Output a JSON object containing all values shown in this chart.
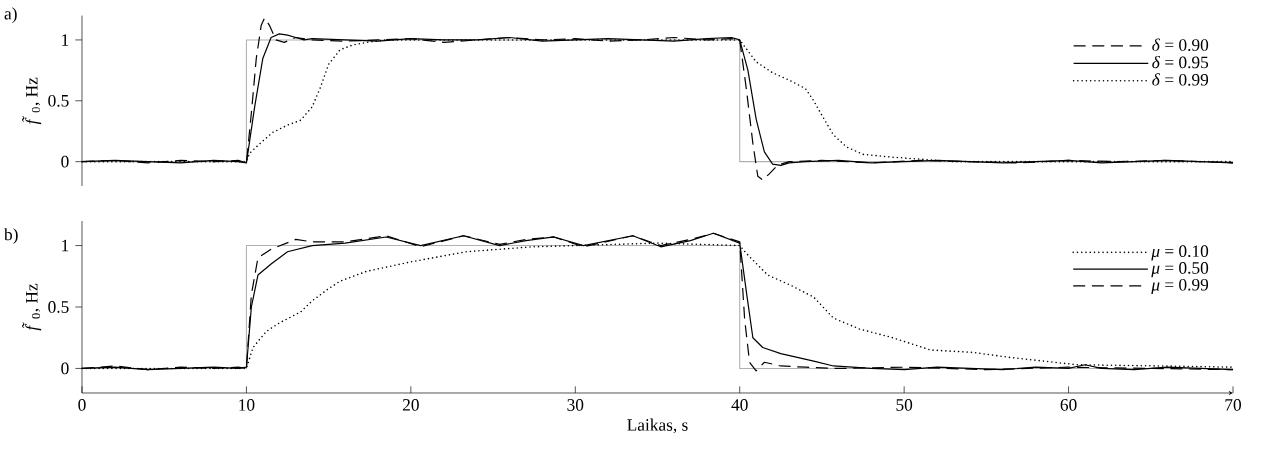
{
  "chart_data": [
    {
      "type": "line",
      "ylabel": "*f̃*$_{0}$, Hz",
      "annotations": [
        "a)"
      ],
      "xlim": [
        0,
        70
      ],
      "ylim": [
        -0.2,
        1.2
      ],
      "yticks": [
        0,
        0.5,
        1
      ],
      "tick_labels": "y",
      "legend": "right",
      "series": [
        {
          "color": "#b0b0b0",
          "line_style": "solid",
          "x": [
            0,
            10,
            10,
            40,
            40,
            70
          ],
          "values": [
            0,
            0,
            1,
            1,
            0,
            0
          ]
        },
        {
          "name": "*δ* = 0.90",
          "color": "#000000",
          "line_style": "dashed",
          "x": [
            0,
            2,
            4,
            6,
            8,
            9.5,
            10,
            10.3,
            10.6,
            10.9,
            11.1,
            11.4,
            11.8,
            12.3,
            13,
            14,
            16,
            18,
            20,
            22,
            24,
            26,
            28,
            30,
            32,
            34,
            36,
            38,
            39.5,
            40,
            40.4,
            40.8,
            41.1,
            41.4,
            41.8,
            42.3,
            43,
            45,
            48,
            51,
            54,
            57,
            60,
            63,
            66,
            70
          ],
          "values": [
            0,
            0.01,
            -0.01,
            0.01,
            0,
            0.01,
            -0.01,
            0.4,
            0.85,
            1.12,
            1.18,
            1.12,
            1.0,
            0.98,
            1.02,
            1.0,
            0.99,
            1.0,
            1.01,
            0.98,
            1.0,
            1.02,
            1.0,
            1.01,
            0.99,
            1.0,
            1.02,
            1.0,
            1.01,
            1.0,
            0.6,
            0.15,
            -0.12,
            -0.15,
            -0.1,
            -0.03,
            0,
            0.01,
            -0.01,
            0.01,
            0,
            -0.01,
            0.01,
            0,
            0.01,
            -0.01
          ]
        },
        {
          "name": "*δ* = 0.95",
          "color": "#000000",
          "line_style": "solid",
          "x": [
            0,
            2,
            4,
            6,
            8,
            9.5,
            10,
            10.5,
            11,
            11.5,
            12,
            12.5,
            13,
            13.5,
            14,
            16,
            18,
            20,
            22,
            24,
            26,
            28,
            30,
            32,
            34,
            36,
            38,
            39.5,
            40,
            40.5,
            41,
            41.5,
            42,
            42.5,
            43,
            44,
            46,
            48,
            50,
            52,
            54,
            56,
            58,
            60,
            62,
            64,
            66,
            68,
            70
          ],
          "values": [
            0,
            0.01,
            0,
            -0.01,
            0.01,
            0,
            -0.01,
            0.45,
            0.85,
            1.02,
            1.05,
            1.04,
            1.02,
            1.0,
            1.01,
            1.0,
            0.99,
            1.01,
            1.0,
            1.0,
            1.02,
            0.99,
            1.0,
            1.01,
            1.0,
            0.99,
            1.01,
            1.02,
            1.0,
            0.75,
            0.35,
            0.08,
            -0.02,
            -0.03,
            -0.01,
            0,
            0.01,
            -0.01,
            0,
            0.01,
            0,
            -0.01,
            0,
            0.01,
            -0.01,
            0,
            0.01,
            0,
            -0.01
          ]
        },
        {
          "name": "*δ* = 0.99",
          "color": "#000000",
          "line_style": "dotted",
          "x": [
            0,
            4,
            8,
            10,
            10.2,
            11,
            11.6,
            12.5,
            13.3,
            14,
            14.5,
            15,
            15.7,
            16.5,
            17.3,
            18.5,
            20,
            25,
            30,
            35,
            40,
            41,
            42,
            43,
            44,
            44.5,
            45,
            45.7,
            46.5,
            47.5,
            49,
            51,
            53,
            56,
            60,
            65,
            70
          ],
          "values": [
            0,
            0,
            0,
            0,
            0.07,
            0.17,
            0.24,
            0.3,
            0.34,
            0.45,
            0.61,
            0.8,
            0.92,
            0.96,
            0.98,
            1.0,
            1.0,
            1.0,
            1.0,
            1.0,
            1.0,
            0.82,
            0.73,
            0.67,
            0.6,
            0.5,
            0.38,
            0.22,
            0.12,
            0.06,
            0.04,
            0.02,
            0,
            0,
            0,
            0,
            0
          ]
        }
      ]
    },
    {
      "type": "line",
      "ylabel": "*f̃*$_{0}$, Hz",
      "xlabel": "Laikas, s",
      "annotations": [
        "b)"
      ],
      "xlim": [
        0,
        70
      ],
      "ylim": [
        -0.2,
        1.2
      ],
      "xticks": [
        0,
        10,
        20,
        30,
        40,
        50,
        60,
        70
      ],
      "yticks": [
        0,
        0.5,
        1
      ],
      "legend": "right",
      "series": [
        {
          "color": "#b0b0b0",
          "line_style": "solid",
          "x": [
            0,
            10,
            10,
            40,
            40,
            70
          ],
          "values": [
            0,
            0,
            1,
            1,
            0,
            0
          ]
        },
        {
          "name": "*μ* = 0.10",
          "color": "#000000",
          "line_style": "dotted",
          "x": [
            0,
            4,
            8,
            10,
            10.4,
            11.2,
            12,
            13.3,
            14,
            15,
            15.7,
            17.3,
            20.1,
            23.4,
            27.4,
            30,
            35,
            40,
            40.45,
            41.7,
            43.2,
            44.5,
            45.7,
            47.3,
            49.3,
            51.6,
            54.2,
            56.4,
            60.5,
            65.6,
            70
          ],
          "values": [
            0,
            0,
            0,
            0,
            0.17,
            0.3,
            0.37,
            0.46,
            0.55,
            0.65,
            0.71,
            0.79,
            0.87,
            0.95,
            0.99,
            1.0,
            1.02,
            1.0,
            0.93,
            0.76,
            0.67,
            0.58,
            0.41,
            0.32,
            0.25,
            0.15,
            0.13,
            0.09,
            0.03,
            0.02,
            0.01
          ]
        },
        {
          "name": "*μ* = 0.50",
          "color": "#000000",
          "line_style": "solid",
          "x": [
            0,
            2,
            4,
            6,
            8,
            9.5,
            10,
            10.3,
            10.7,
            11.5,
            12.5,
            14,
            16,
            18.5,
            20.6,
            23.2,
            25.4,
            27,
            28.7,
            30.5,
            33.5,
            35.2,
            37,
            38.4,
            40,
            40.45,
            40.8,
            41.4,
            42.5,
            44.5,
            45.7,
            48,
            50,
            52,
            54,
            56,
            58,
            60,
            61,
            62,
            64,
            66,
            68,
            70
          ],
          "values": [
            0,
            0.01,
            -0.01,
            0,
            0.01,
            0,
            0.01,
            0.5,
            0.76,
            0.85,
            0.95,
            1.0,
            1.02,
            1.07,
            1.0,
            1.08,
            1.0,
            1.04,
            1.07,
            1.0,
            1.08,
            0.99,
            1.04,
            1.1,
            1.02,
            0.58,
            0.25,
            0.17,
            0.12,
            0.06,
            0.02,
            0,
            -0.01,
            0.01,
            0,
            -0.01,
            0.01,
            0,
            0.03,
            0,
            -0.01,
            0.01,
            0,
            -0.01
          ]
        },
        {
          "name": "*μ* = 0.99",
          "color": "#000000",
          "line_style": "dashed",
          "x": [
            0,
            2,
            4,
            6,
            8,
            9.5,
            10,
            10.3,
            10.7,
            11.5,
            13,
            14,
            16,
            18.5,
            20.6,
            23.2,
            25.4,
            27,
            28.7,
            30.5,
            33.5,
            35.2,
            37,
            38.4,
            40,
            40.3,
            40.6,
            41,
            41.5,
            42.5,
            44,
            46,
            50,
            55,
            60,
            65,
            70
          ],
          "values": [
            0,
            0.02,
            -0.01,
            0.01,
            0,
            0.01,
            0,
            0.6,
            0.9,
            0.97,
            1.05,
            1.03,
            1.03,
            1.08,
            0.99,
            1.08,
            1.01,
            1.05,
            1.07,
            0.99,
            1.08,
            1.0,
            1.05,
            1.1,
            1.03,
            0.4,
            0.05,
            -0.02,
            0.05,
            0.02,
            0.01,
            0,
            0.01,
            -0.01,
            0.01,
            0,
            -0.01
          ]
        }
      ]
    }
  ]
}
